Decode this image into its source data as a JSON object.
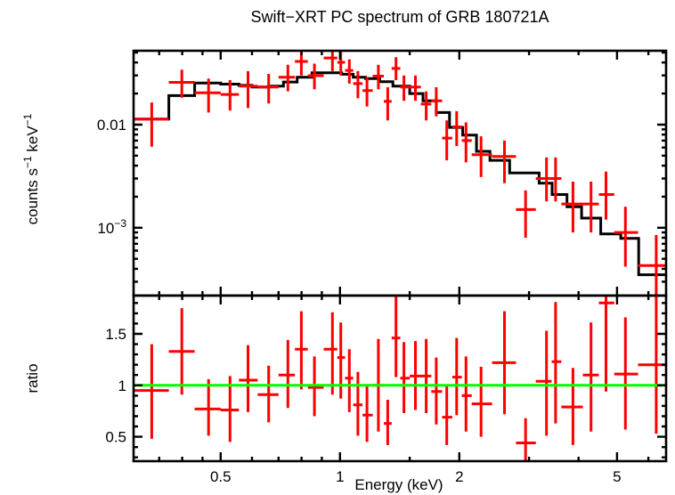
{
  "title": "Swift−XRT PC spectrum of GRB 180721A",
  "colors": {
    "data_points": "#ff0000",
    "model_line": "#000000",
    "reference_line": "#00ff00",
    "axes": "#000000",
    "background": "#ffffff"
  },
  "chart_data": {
    "type": "scatter",
    "subtype": "xspec-spectrum-with-ratio",
    "xlabel": "Energy (keV)",
    "x_axis": {
      "scale": "log",
      "range": [
        0.3015,
        6.65
      ],
      "major_ticks": [
        {
          "value": 0.5,
          "label": "0.5"
        },
        {
          "value": 1,
          "label": "1"
        },
        {
          "value": 2,
          "label": "2"
        },
        {
          "value": 5,
          "label": "5"
        }
      ],
      "minor_ticks": [
        0.35,
        0.4,
        0.45,
        0.6,
        0.7,
        0.8,
        0.9,
        1.5,
        3,
        4,
        6
      ]
    },
    "spectrum_panel": {
      "ylabel_parts": [
        {
          "text": "counts s"
        },
        {
          "text": "−1",
          "sup": true
        },
        {
          "text": " keV"
        },
        {
          "text": "−1",
          "sup": true
        }
      ],
      "yscale": "log",
      "yrange": [
        0.00022,
        0.052
      ],
      "y_major_ticks": [
        {
          "value": 0.01,
          "label": "0.01"
        },
        {
          "value": 0.001,
          "label_base": "10",
          "label_exp": "−3"
        }
      ],
      "y_minor_ticks": [
        0.0003,
        0.0004,
        0.0005,
        0.0006,
        0.0007,
        0.0008,
        0.0009,
        0.002,
        0.003,
        0.004,
        0.005,
        0.006,
        0.007,
        0.008,
        0.009,
        0.02,
        0.03,
        0.04,
        0.05
      ],
      "model_step": {
        "edges": [
          0.3015,
          0.37,
          0.43,
          0.5,
          0.556,
          0.6,
          0.66,
          0.72,
          0.78,
          0.85,
          1.01,
          1.08,
          1.16,
          1.26,
          1.36,
          1.5,
          1.62,
          1.75,
          1.89,
          2.04,
          2.21,
          2.39,
          2.68,
          3.18,
          3.43,
          3.74,
          4.07,
          4.55,
          5.11,
          5.67,
          6.65
        ],
        "rates": [
          0.0113,
          0.0191,
          0.0253,
          0.0247,
          0.024,
          0.0231,
          0.0236,
          0.0259,
          0.0288,
          0.0318,
          0.0308,
          0.0288,
          0.0279,
          0.0261,
          0.0236,
          0.02,
          0.017,
          0.0131,
          0.0094,
          0.0079,
          0.0055,
          0.0045,
          0.0034,
          0.0027,
          0.0021,
          0.0016,
          0.00124,
          0.00087,
          0.00079,
          0.00035
        ]
      },
      "points": [
        {
          "e": 0.335,
          "e_lo": 0.3015,
          "e_hi": 0.37,
          "rate": 0.0113,
          "rate_lo": 0.0061,
          "rate_hi": 0.0164
        },
        {
          "e": 0.399,
          "e_lo": 0.37,
          "e_hi": 0.43,
          "rate": 0.0257,
          "rate_lo": 0.0182,
          "rate_hi": 0.0341
        },
        {
          "e": 0.466,
          "e_lo": 0.43,
          "e_hi": 0.5,
          "rate": 0.0203,
          "rate_lo": 0.0131,
          "rate_hi": 0.0279
        },
        {
          "e": 0.528,
          "e_lo": 0.5,
          "e_hi": 0.556,
          "rate": 0.0196,
          "rate_lo": 0.0137,
          "rate_hi": 0.027
        },
        {
          "e": 0.586,
          "e_lo": 0.556,
          "e_hi": 0.62,
          "rate": 0.0236,
          "rate_lo": 0.0145,
          "rate_hi": 0.0329
        },
        {
          "e": 0.661,
          "e_lo": 0.62,
          "e_hi": 0.7,
          "rate": 0.0231,
          "rate_lo": 0.016,
          "rate_hi": 0.031
        },
        {
          "e": 0.739,
          "e_lo": 0.7,
          "e_hi": 0.77,
          "rate": 0.0288,
          "rate_lo": 0.021,
          "rate_hi": 0.038
        },
        {
          "e": 0.799,
          "e_lo": 0.77,
          "e_hi": 0.83,
          "rate": 0.041,
          "rate_lo": 0.03,
          "rate_hi": 0.052
        },
        {
          "e": 0.862,
          "e_lo": 0.83,
          "e_hi": 0.91,
          "rate": 0.0298,
          "rate_lo": 0.022,
          "rate_hi": 0.039
        },
        {
          "e": 0.957,
          "e_lo": 0.91,
          "e_hi": 0.985,
          "rate": 0.0443,
          "rate_lo": 0.033,
          "rate_hi": 0.053
        },
        {
          "e": 1.005,
          "e_lo": 0.985,
          "e_hi": 1.03,
          "rate": 0.0402,
          "rate_lo": 0.03,
          "rate_hi": 0.051
        },
        {
          "e": 1.056,
          "e_lo": 1.03,
          "e_hi": 1.08,
          "rate": 0.0335,
          "rate_lo": 0.025,
          "rate_hi": 0.043
        },
        {
          "e": 1.11,
          "e_lo": 1.08,
          "e_hi": 1.14,
          "rate": 0.025,
          "rate_lo": 0.018,
          "rate_hi": 0.033
        },
        {
          "e": 1.17,
          "e_lo": 1.14,
          "e_hi": 1.21,
          "rate": 0.0214,
          "rate_lo": 0.015,
          "rate_hi": 0.029
        },
        {
          "e": 1.25,
          "e_lo": 1.21,
          "e_hi": 1.29,
          "rate": 0.0295,
          "rate_lo": 0.022,
          "rate_hi": 0.038
        },
        {
          "e": 1.32,
          "e_lo": 1.29,
          "e_hi": 1.35,
          "rate": 0.0168,
          "rate_lo": 0.011,
          "rate_hi": 0.023
        },
        {
          "e": 1.385,
          "e_lo": 1.35,
          "e_hi": 1.42,
          "rate": 0.035,
          "rate_lo": 0.027,
          "rate_hi": 0.045
        },
        {
          "e": 1.45,
          "e_lo": 1.42,
          "e_hi": 1.5,
          "rate": 0.0231,
          "rate_lo": 0.017,
          "rate_hi": 0.03
        },
        {
          "e": 1.55,
          "e_lo": 1.5,
          "e_hi": 1.6,
          "rate": 0.0231,
          "rate_lo": 0.017,
          "rate_hi": 0.03
        },
        {
          "e": 1.65,
          "e_lo": 1.6,
          "e_hi": 1.7,
          "rate": 0.0158,
          "rate_lo": 0.011,
          "rate_hi": 0.021
        },
        {
          "e": 1.75,
          "e_lo": 1.7,
          "e_hi": 1.81,
          "rate": 0.017,
          "rate_lo": 0.012,
          "rate_hi": 0.023
        },
        {
          "e": 1.86,
          "e_lo": 1.81,
          "e_hi": 1.92,
          "rate": 0.0074,
          "rate_lo": 0.0045,
          "rate_hi": 0.011
        },
        {
          "e": 1.97,
          "e_lo": 1.92,
          "e_hi": 2.03,
          "rate": 0.0095,
          "rate_lo": 0.0062,
          "rate_hi": 0.0135
        },
        {
          "e": 2.08,
          "e_lo": 2.03,
          "e_hi": 2.15,
          "rate": 0.007,
          "rate_lo": 0.0043,
          "rate_hi": 0.0105
        },
        {
          "e": 2.27,
          "e_lo": 2.15,
          "e_hi": 2.42,
          "rate": 0.0051,
          "rate_lo": 0.0031,
          "rate_hi": 0.0077
        },
        {
          "e": 2.6,
          "e_lo": 2.42,
          "e_hi": 2.78,
          "rate": 0.0049,
          "rate_lo": 0.0027,
          "rate_hi": 0.007
        },
        {
          "e": 2.94,
          "e_lo": 2.78,
          "e_hi": 3.12,
          "rate": 0.0015,
          "rate_lo": 0.0008,
          "rate_hi": 0.0023
        },
        {
          "e": 3.32,
          "e_lo": 3.12,
          "e_hi": 3.42,
          "rate": 0.003,
          "rate_lo": 0.0018,
          "rate_hi": 0.0048
        },
        {
          "e": 3.5,
          "e_lo": 3.42,
          "e_hi": 3.62,
          "rate": 0.003,
          "rate_lo": 0.0018,
          "rate_hi": 0.0048
        },
        {
          "e": 3.87,
          "e_lo": 3.62,
          "e_hi": 4.1,
          "rate": 0.0017,
          "rate_lo": 0.0009,
          "rate_hi": 0.0028
        },
        {
          "e": 4.3,
          "e_lo": 4.1,
          "e_hi": 4.5,
          "rate": 0.0017,
          "rate_lo": 0.0009,
          "rate_hi": 0.0028
        },
        {
          "e": 4.69,
          "e_lo": 4.5,
          "e_hi": 4.92,
          "rate": 0.0021,
          "rate_lo": 0.0012,
          "rate_hi": 0.0035
        },
        {
          "e": 5.25,
          "e_lo": 4.92,
          "e_hi": 5.65,
          "rate": 0.0009,
          "rate_lo": 0.00042,
          "rate_hi": 0.0016
        },
        {
          "e": 6.28,
          "e_lo": 5.65,
          "e_hi": 6.65,
          "rate": 0.00043,
          "rate_lo": 0.0002,
          "rate_hi": 0.00085
        }
      ]
    },
    "ratio_panel": {
      "ylabel": "ratio",
      "yscale": "linear",
      "yrange": [
        0.263,
        1.872
      ],
      "reference_line": {
        "value": 1
      },
      "y_major_ticks": [
        {
          "value": 0.5,
          "label": "0.5"
        },
        {
          "value": 1,
          "label": "1"
        },
        {
          "value": 1.5,
          "label": "1.5"
        }
      ],
      "y_minor_ticks": [
        0.3,
        0.4,
        0.6,
        0.7,
        0.8,
        0.9,
        1.1,
        1.2,
        1.3,
        1.4,
        1.6,
        1.7,
        1.8
      ],
      "points": [
        {
          "e": 0.335,
          "e_lo": 0.3015,
          "e_hi": 0.37,
          "ratio": 0.95,
          "ratio_lo": 0.48,
          "ratio_hi": 1.4
        },
        {
          "e": 0.399,
          "e_lo": 0.37,
          "e_hi": 0.43,
          "ratio": 1.33,
          "ratio_lo": 0.91,
          "ratio_hi": 1.75
        },
        {
          "e": 0.466,
          "e_lo": 0.43,
          "e_hi": 0.5,
          "ratio": 0.77,
          "ratio_lo": 0.51,
          "ratio_hi": 1.06
        },
        {
          "e": 0.528,
          "e_lo": 0.5,
          "e_hi": 0.556,
          "ratio": 0.76,
          "ratio_lo": 0.45,
          "ratio_hi": 1.09
        },
        {
          "e": 0.586,
          "e_lo": 0.556,
          "e_hi": 0.62,
          "ratio": 1.05,
          "ratio_lo": 0.74,
          "ratio_hi": 1.39
        },
        {
          "e": 0.661,
          "e_lo": 0.62,
          "e_hi": 0.7,
          "ratio": 0.91,
          "ratio_lo": 0.64,
          "ratio_hi": 1.19
        },
        {
          "e": 0.739,
          "e_lo": 0.7,
          "e_hi": 0.77,
          "ratio": 1.1,
          "ratio_lo": 0.78,
          "ratio_hi": 1.44
        },
        {
          "e": 0.799,
          "e_lo": 0.77,
          "e_hi": 0.83,
          "ratio": 1.35,
          "ratio_lo": 0.96,
          "ratio_hi": 1.72
        },
        {
          "e": 0.862,
          "e_lo": 0.83,
          "e_hi": 0.91,
          "ratio": 0.98,
          "ratio_lo": 0.7,
          "ratio_hi": 1.28
        },
        {
          "e": 0.957,
          "e_lo": 0.91,
          "e_hi": 0.985,
          "ratio": 1.35,
          "ratio_lo": 0.91,
          "ratio_hi": 1.71
        },
        {
          "e": 1.005,
          "e_lo": 0.985,
          "e_hi": 1.03,
          "ratio": 1.27,
          "ratio_lo": 0.87,
          "ratio_hi": 1.61
        },
        {
          "e": 1.056,
          "e_lo": 1.03,
          "e_hi": 1.08,
          "ratio": 1.07,
          "ratio_lo": 0.74,
          "ratio_hi": 1.35
        },
        {
          "e": 1.11,
          "e_lo": 1.08,
          "e_hi": 1.14,
          "ratio": 0.81,
          "ratio_lo": 0.51,
          "ratio_hi": 1.13
        },
        {
          "e": 1.17,
          "e_lo": 1.14,
          "e_hi": 1.21,
          "ratio": 0.71,
          "ratio_lo": 0.45,
          "ratio_hi": 1.0
        },
        {
          "e": 1.25,
          "e_lo": 1.21,
          "e_hi": 1.29,
          "ratio": 1.0,
          "ratio_lo": 0.55,
          "ratio_hi": 1.45
        },
        {
          "e": 1.32,
          "e_lo": 1.29,
          "e_hi": 1.35,
          "ratio": 0.63,
          "ratio_lo": 0.42,
          "ratio_hi": 0.86
        },
        {
          "e": 1.385,
          "e_lo": 1.35,
          "e_hi": 1.42,
          "ratio": 1.46,
          "ratio_lo": 1.08,
          "ratio_hi": 1.872
        },
        {
          "e": 1.45,
          "e_lo": 1.42,
          "e_hi": 1.5,
          "ratio": 1.07,
          "ratio_lo": 0.73,
          "ratio_hi": 1.42
        },
        {
          "e": 1.55,
          "e_lo": 1.5,
          "e_hi": 1.6,
          "ratio": 1.09,
          "ratio_lo": 0.76,
          "ratio_hi": 1.43
        },
        {
          "e": 1.65,
          "e_lo": 1.6,
          "e_hi": 1.7,
          "ratio": 1.09,
          "ratio_lo": 0.73,
          "ratio_hi": 1.45
        },
        {
          "e": 1.75,
          "e_lo": 1.7,
          "e_hi": 1.81,
          "ratio": 0.94,
          "ratio_lo": 0.62,
          "ratio_hi": 1.27
        },
        {
          "e": 1.86,
          "e_lo": 1.81,
          "e_hi": 1.92,
          "ratio": 0.69,
          "ratio_lo": 0.42,
          "ratio_hi": 0.99
        },
        {
          "e": 1.97,
          "e_lo": 1.92,
          "e_hi": 2.03,
          "ratio": 1.08,
          "ratio_lo": 0.71,
          "ratio_hi": 1.46
        },
        {
          "e": 2.08,
          "e_lo": 2.03,
          "e_hi": 2.15,
          "ratio": 0.9,
          "ratio_lo": 0.55,
          "ratio_hi": 1.28
        },
        {
          "e": 2.27,
          "e_lo": 2.15,
          "e_hi": 2.42,
          "ratio": 0.82,
          "ratio_lo": 0.5,
          "ratio_hi": 1.18
        },
        {
          "e": 2.6,
          "e_lo": 2.42,
          "e_hi": 2.78,
          "ratio": 1.22,
          "ratio_lo": 0.72,
          "ratio_hi": 1.72
        },
        {
          "e": 2.94,
          "e_lo": 2.78,
          "e_hi": 3.12,
          "ratio": 0.44,
          "ratio_lo": 0.26,
          "ratio_hi": 0.68
        },
        {
          "e": 3.32,
          "e_lo": 3.12,
          "e_hi": 3.42,
          "ratio": 1.04,
          "ratio_lo": 0.51,
          "ratio_hi": 1.53
        },
        {
          "e": 3.5,
          "e_lo": 3.42,
          "e_hi": 3.62,
          "ratio": 1.23,
          "ratio_lo": 0.63,
          "ratio_hi": 1.81
        },
        {
          "e": 3.87,
          "e_lo": 3.62,
          "e_hi": 4.1,
          "ratio": 0.79,
          "ratio_lo": 0.42,
          "ratio_hi": 1.17
        },
        {
          "e": 4.3,
          "e_lo": 4.1,
          "e_hi": 4.5,
          "ratio": 1.1,
          "ratio_lo": 0.55,
          "ratio_hi": 1.61
        },
        {
          "e": 4.69,
          "e_lo": 4.5,
          "e_hi": 4.92,
          "ratio": 1.8,
          "ratio_lo": 0.94,
          "ratio_hi": 1.872
        },
        {
          "e": 5.25,
          "e_lo": 4.92,
          "e_hi": 5.65,
          "ratio": 1.11,
          "ratio_lo": 0.57,
          "ratio_hi": 1.66
        },
        {
          "e": 6.28,
          "e_lo": 5.65,
          "e_hi": 6.65,
          "ratio": 1.2,
          "ratio_lo": 0.53,
          "ratio_hi": 1.872
        }
      ]
    }
  }
}
